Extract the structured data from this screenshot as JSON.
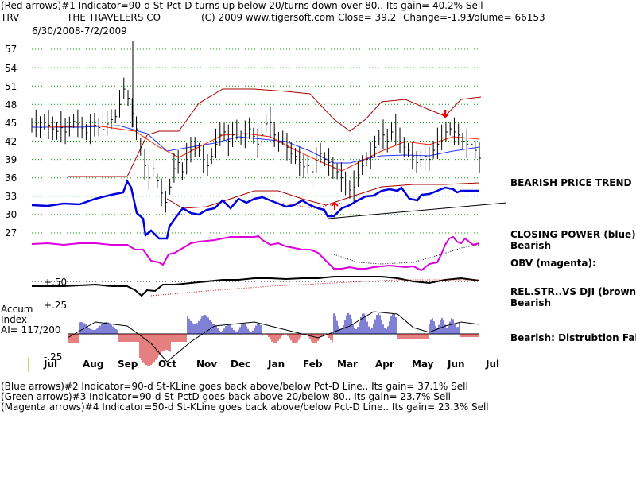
{
  "header": {
    "line1": "(Red arrows)#1 Indicator=90-d St-Pct-D turns up below 20/turns down over 80..  Its gain= 40.2% Sell",
    "ticker": "TRV",
    "company": "THE TRAVELERS CO",
    "copyright": "(C) 2009 www.tigersoft.com",
    "close": "Close=  39.2",
    "change": "Change=-1.93",
    "volume": "Volume= 66153",
    "date_range": "6/30/2008-7/2/2009"
  },
  "annotations": {
    "trend": "BEARISH PRICE TREND",
    "closing_power": "CLOSING POWER (blue):",
    "closing_power_val": "Bearish",
    "obv": "OBV (magenta):",
    "relstr": "REL.STR..VS DJI (brown):",
    "relstr_val": "Bearish",
    "accum_comment": "Bearish:  Distrubtion Falling."
  },
  "accum": {
    "title1": "Accum",
    "title2": "Index",
    "ai": "AI= 117/200",
    "level_50": "+.50",
    "level_25": "+.25",
    "level_neg25": "-.25"
  },
  "footer": {
    "line1": "(Blue arrows)#2 Indicator=90-d St-KLine goes back above/below Pct-D Line..  Its gain= 37.1% Sell",
    "line2": "(Green arrows)#3 Indicator=90-d St-PctD goes back above 20/below 80..  Its gain= 23.7% Sell",
    "line3": "(Magenta arrows)#4 Indicator=50-d St-KLine goes back above/below Pct-D Line..  Its gain= 23.3% Sell"
  },
  "colors": {
    "price": "#000000",
    "band": "#aa0000",
    "closing_power": "#0000dd",
    "ma_blue": "#2233ff",
    "ma_red": "#ff2200",
    "obv": "#dd00dd",
    "relstr": "#000000",
    "accum_pos": "#0000aa",
    "accum_neg": "#cc0000",
    "grid": "#009900"
  },
  "chart_data": {
    "type": "line",
    "title": "THE TRAVELERS CO",
    "xlabel": "",
    "ylabel": "",
    "ylim": [
      27,
      57
    ],
    "y_ticks": [
      57,
      54,
      51,
      48,
      45,
      42,
      39,
      36,
      33,
      30,
      27
    ],
    "x_ticks": [
      "Jul",
      "Aug",
      "Sep",
      "Oct",
      "Nov",
      "Dec",
      "Jan",
      "Feb",
      "Mar",
      "Apr",
      "May",
      "Jun",
      "Jul"
    ],
    "series": [
      {
        "name": "Close",
        "values": [
          44.5,
          44.8,
          44.2,
          45.0,
          44.6,
          44.0,
          43.6,
          44.2,
          43.5,
          44.3,
          45.2,
          44.8,
          44.1,
          43.4,
          43.8,
          44.6,
          44.2,
          43.9,
          44.8,
          45.5,
          46.0,
          48.0,
          50.5,
          49.0,
          46.5,
          44.0,
          41.0,
          38.0,
          36.0,
          37.5,
          35.5,
          33.5,
          32.0,
          34.5,
          37.5,
          38.5,
          37.0,
          39.0,
          40.5,
          41.0,
          40.5,
          39.0,
          38.0,
          39.5,
          41.5,
          43.0,
          43.5,
          42.0,
          43.0,
          43.8,
          42.5,
          43.0,
          44.0,
          42.8,
          41.5,
          43.0,
          44.8,
          45.0,
          43.0,
          41.8,
          42.5,
          41.0,
          40.0,
          39.5,
          38.5,
          37.8,
          38.0,
          37.0,
          38.8,
          40.0,
          39.0,
          38.5,
          37.5,
          37.0,
          36.0,
          35.0,
          34.0,
          34.5,
          36.5,
          38.0,
          39.0,
          39.5,
          41.0,
          42.5,
          43.0,
          42.0,
          43.5,
          43.8,
          42.0,
          41.0,
          40.5,
          39.5,
          38.5,
          39.0,
          39.5,
          39.0,
          40.5,
          41.5,
          42.5,
          43.5,
          44.0,
          43.5,
          43.0,
          42.0,
          41.5,
          41.5,
          40.5,
          39.2
        ]
      },
      {
        "name": "CLOSING POWER (blue)",
        "values": []
      },
      {
        "name": "OBV (magenta)",
        "values": []
      },
      {
        "name": "REL.STR..VS DJI (brown)",
        "values": []
      }
    ]
  }
}
